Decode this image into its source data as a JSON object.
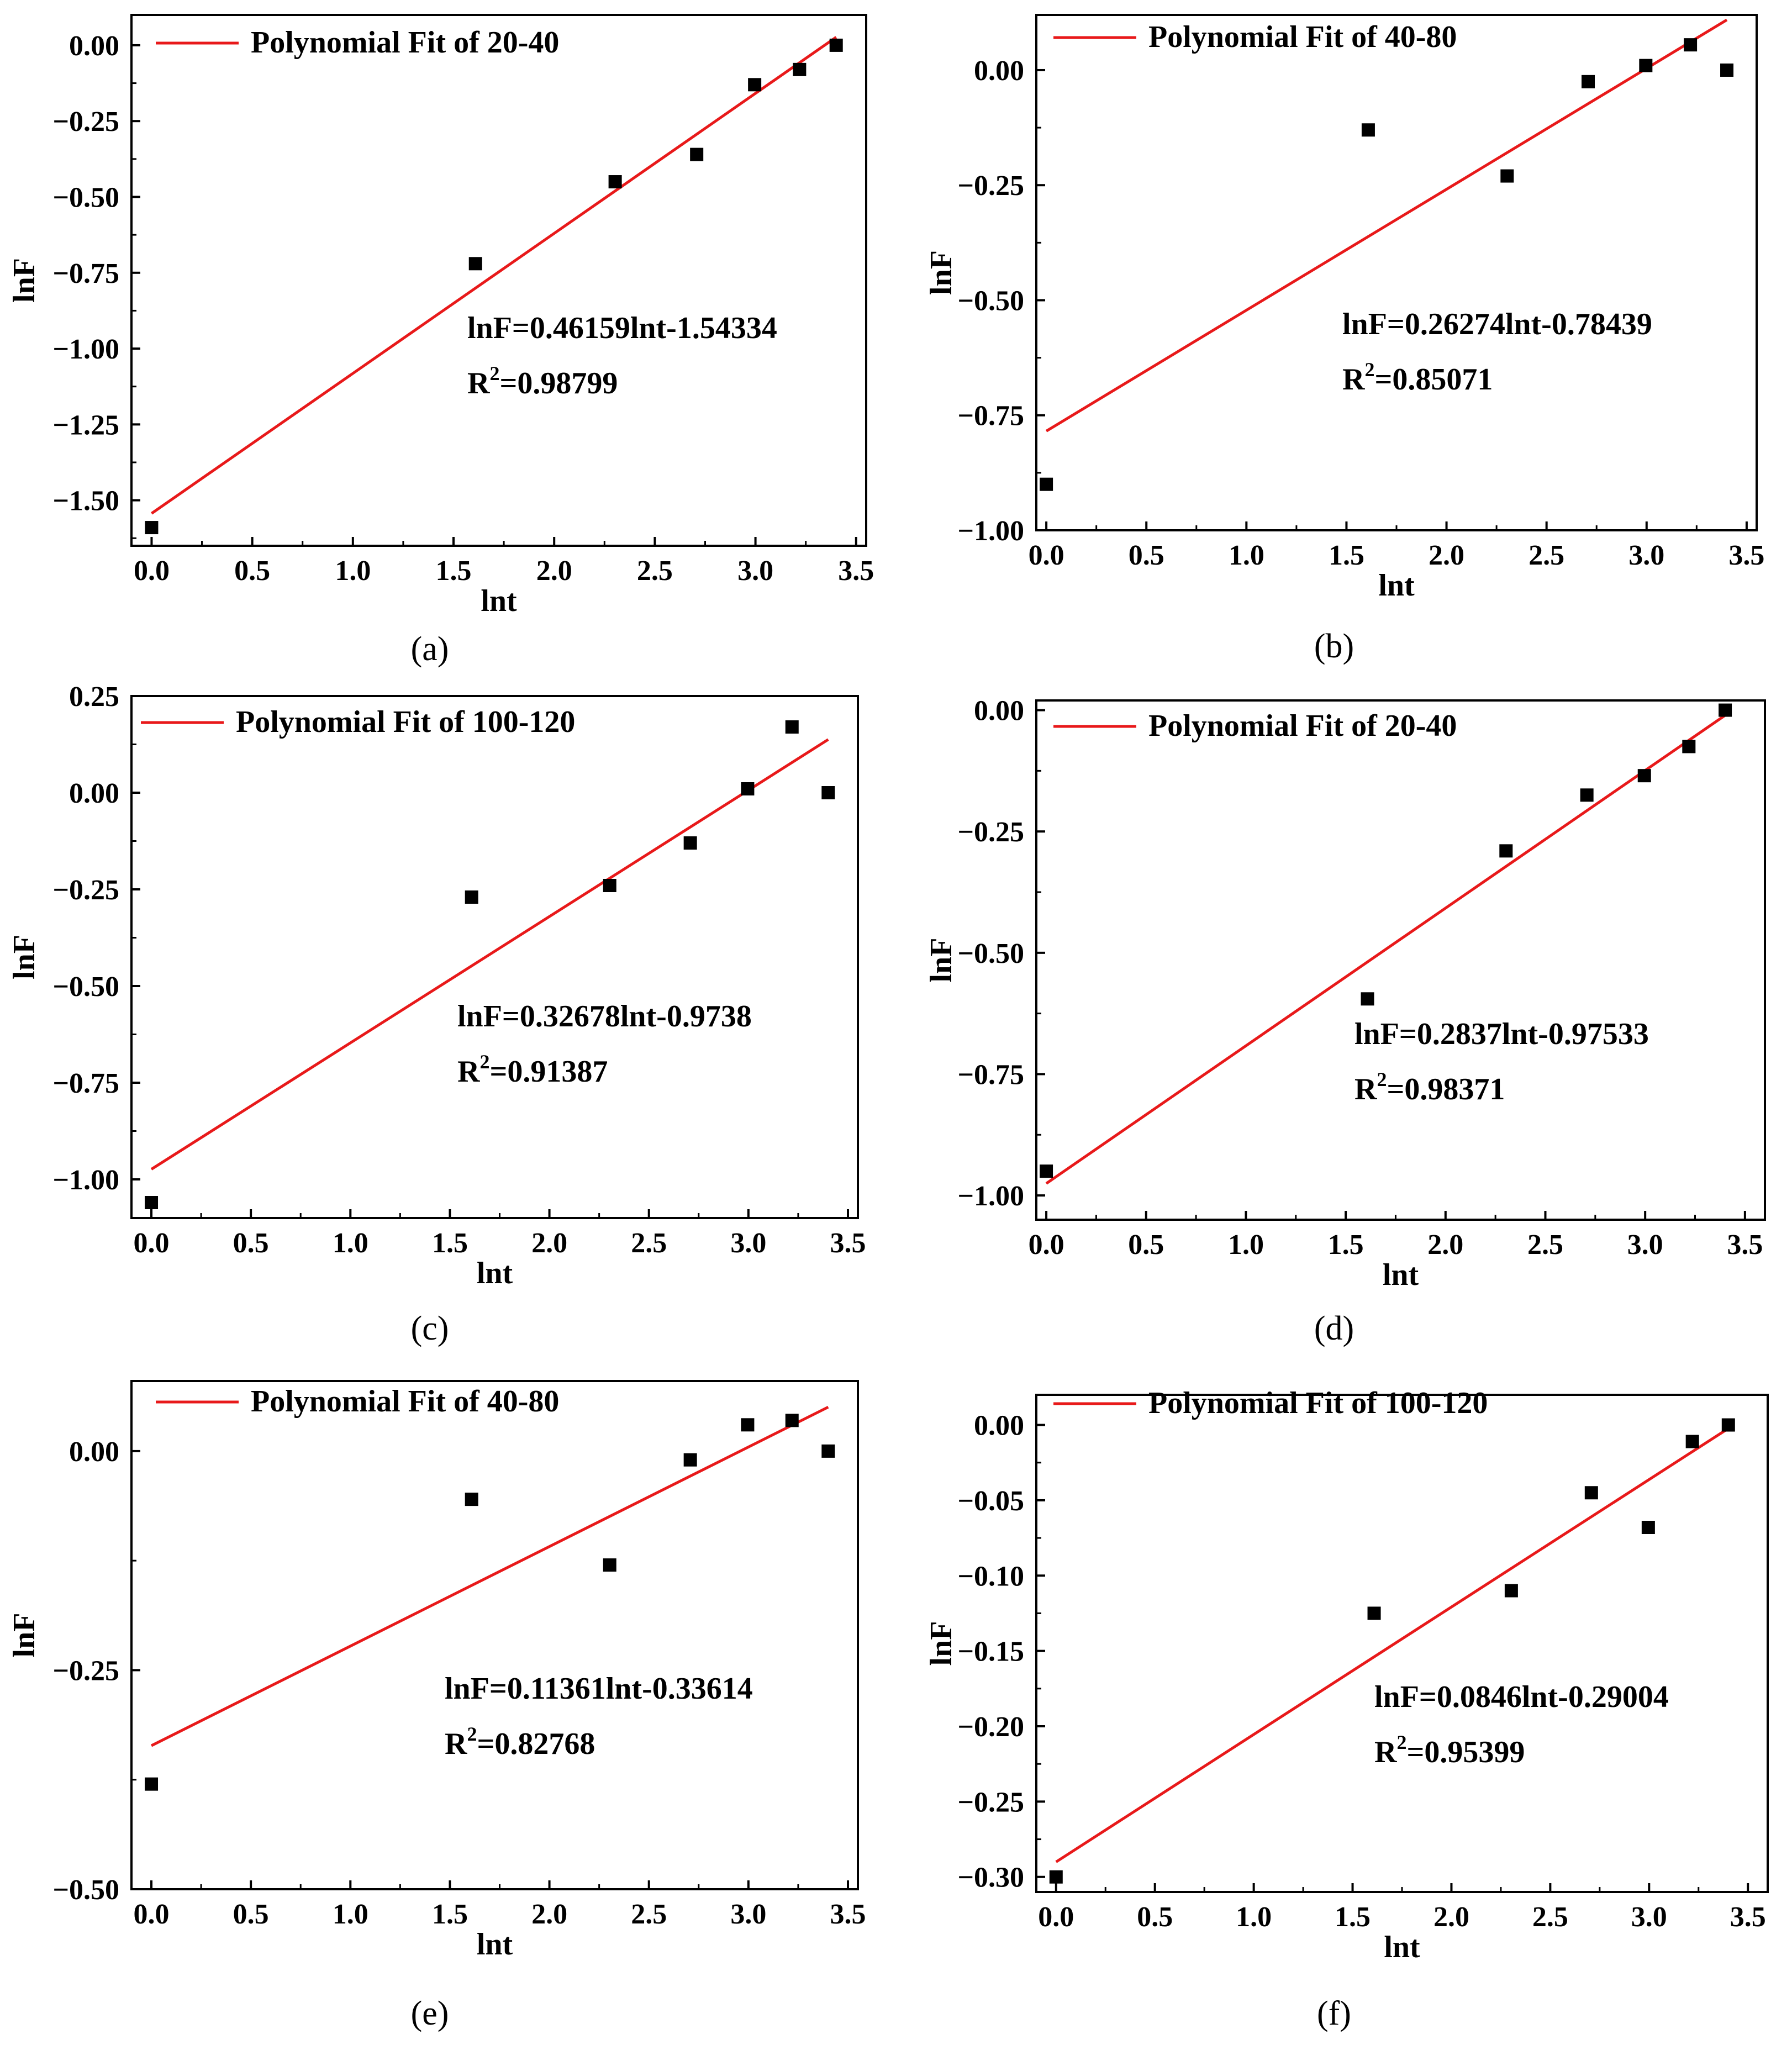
{
  "figure": {
    "panels_count": 6
  },
  "chart_data": [
    {
      "panel": "a",
      "caption": "(a)",
      "type": "scatter",
      "title": "",
      "xlabel": "lnt",
      "ylabel": "lnF",
      "xlim": [
        -0.1,
        3.55
      ],
      "ylim": [
        -1.65,
        0.1
      ],
      "xticks": [
        0.0,
        0.5,
        1.0,
        1.5,
        2.0,
        2.5,
        3.0,
        3.5
      ],
      "xtick_labels": [
        "0.0",
        "0.5",
        "1.0",
        "1.5",
        "2.0",
        "2.5",
        "3.0",
        "3.5"
      ],
      "yticks": [
        0.0,
        -0.25,
        -0.5,
        -0.75,
        -1.0,
        -1.25,
        -1.5
      ],
      "ytick_labels": [
        "0.00",
        "−0.25",
        "−0.50",
        "−0.75",
        "−1.00",
        "−1.25",
        "−1.50"
      ],
      "series": [
        {
          "name": "data",
          "x": [
            0.0,
            1.609,
            2.303,
            2.708,
            2.996,
            3.219,
            3.401
          ],
          "y": [
            -1.59,
            -0.72,
            -0.45,
            -0.36,
            -0.13,
            -0.08,
            0.0
          ]
        }
      ],
      "fit": {
        "slope": 0.46159,
        "intercept": -1.54334,
        "x_range": [
          0.0,
          3.401
        ],
        "color": "#e8191a"
      },
      "legend": "Polynomial Fit of 20-40",
      "equation": "lnF=0.46159lnt-1.54334",
      "r2_label": "R",
      "r2_sup": "2",
      "r2_value": "=0.98799"
    },
    {
      "panel": "b",
      "caption": "(b)",
      "type": "scatter",
      "title": "",
      "xlabel": "lnt",
      "ylabel": "lnF",
      "xlim": [
        -0.05,
        3.55
      ],
      "ylim": [
        -1.0,
        0.12
      ],
      "xticks": [
        0.0,
        0.5,
        1.0,
        1.5,
        2.0,
        2.5,
        3.0,
        3.5
      ],
      "xtick_labels": [
        "0.0",
        "0.5",
        "1.0",
        "1.5",
        "2.0",
        "2.5",
        "3.0",
        "3.5"
      ],
      "yticks": [
        0.0,
        -0.25,
        -0.5,
        -0.75,
        -1.0
      ],
      "ytick_labels": [
        "0.00",
        "−0.25",
        "−0.50",
        "−0.75",
        "−1.00"
      ],
      "series": [
        {
          "name": "data",
          "x": [
            0.0,
            1.609,
            2.303,
            2.708,
            2.996,
            3.219,
            3.401
          ],
          "y": [
            -0.9,
            -0.13,
            -0.23,
            -0.025,
            0.01,
            0.055,
            0.0
          ]
        }
      ],
      "fit": {
        "slope": 0.26274,
        "intercept": -0.78439,
        "x_range": [
          0.0,
          3.401
        ],
        "color": "#e8191a"
      },
      "legend": "Polynomial Fit of 40-80",
      "equation": "lnF=0.26274lnt-0.78439",
      "r2_label": "R",
      "r2_sup": "2",
      "r2_value": "=0.85071"
    },
    {
      "panel": "c",
      "caption": "(c)",
      "type": "scatter",
      "title": "",
      "xlabel": "lnt",
      "ylabel": "lnF",
      "xlim": [
        -0.1,
        3.55
      ],
      "ylim": [
        -1.1,
        0.25
      ],
      "xticks": [
        0.0,
        0.5,
        1.0,
        1.5,
        2.0,
        2.5,
        3.0,
        3.5
      ],
      "xtick_labels": [
        "0.0",
        "0.5",
        "1.0",
        "1.5",
        "2.0",
        "2.5",
        "3.0",
        "3.5"
      ],
      "yticks": [
        0.25,
        0.0,
        -0.25,
        -0.5,
        -0.75,
        -1.0
      ],
      "ytick_labels": [
        "0.25",
        "0.00",
        "−0.25",
        "−0.50",
        "−0.75",
        "−1.00"
      ],
      "series": [
        {
          "name": "data",
          "x": [
            0.0,
            1.609,
            2.303,
            2.708,
            2.996,
            3.219,
            3.401
          ],
          "y": [
            -1.06,
            -0.27,
            -0.24,
            -0.13,
            0.01,
            0.17,
            0.0
          ]
        }
      ],
      "fit": {
        "slope": 0.32678,
        "intercept": -0.9738,
        "x_range": [
          0.0,
          3.401
        ],
        "color": "#e8191a"
      },
      "legend": "Polynomial Fit of 100-120",
      "equation": "lnF=0.32678lnt-0.9738",
      "r2_label": "R",
      "r2_sup": "2",
      "r2_value": "=0.91387"
    },
    {
      "panel": "d",
      "caption": "(d)",
      "type": "scatter",
      "title": "",
      "xlabel": "lnt",
      "ylabel": "lnF",
      "xlim": [
        -0.05,
        3.6
      ],
      "ylim": [
        -1.05,
        0.02
      ],
      "xticks": [
        0.0,
        0.5,
        1.0,
        1.5,
        2.0,
        2.5,
        3.0,
        3.5
      ],
      "xtick_labels": [
        "0.0",
        "0.5",
        "1.0",
        "1.5",
        "2.0",
        "2.5",
        "3.0",
        "3.5"
      ],
      "yticks": [
        0.0,
        -0.25,
        -0.5,
        -0.75,
        -1.0
      ],
      "ytick_labels": [
        "0.00",
        "−0.25",
        "−0.50",
        "−0.75",
        "−1.00"
      ],
      "series": [
        {
          "name": "data",
          "x": [
            0.0,
            1.609,
            2.303,
            2.708,
            2.996,
            3.219,
            3.401
          ],
          "y": [
            -0.95,
            -0.595,
            -0.29,
            -0.175,
            -0.135,
            -0.075,
            0.0
          ]
        }
      ],
      "fit": {
        "slope": 0.2837,
        "intercept": -0.97533,
        "x_range": [
          0.0,
          3.401
        ],
        "color": "#e8191a"
      },
      "legend": "Polynomial Fit of 20-40",
      "equation": "lnF=0.2837lnt-0.97533",
      "r2_label": "R",
      "r2_sup": "2",
      "r2_value": "=0.98371"
    },
    {
      "panel": "e",
      "caption": "(e)",
      "type": "scatter",
      "title": "",
      "xlabel": "lnt",
      "ylabel": "lnF",
      "xlim": [
        -0.1,
        3.55
      ],
      "ylim": [
        -0.5,
        0.08
      ],
      "xticks": [
        0.0,
        0.5,
        1.0,
        1.5,
        2.0,
        2.5,
        3.0,
        3.5
      ],
      "xtick_labels": [
        "0.0",
        "0.5",
        "1.0",
        "1.5",
        "2.0",
        "2.5",
        "3.0",
        "3.5"
      ],
      "yticks": [
        0.0,
        -0.25,
        -0.5
      ],
      "ytick_labels": [
        "0.00",
        "−0.25",
        "−0.50"
      ],
      "series": [
        {
          "name": "data",
          "x": [
            0.0,
            1.609,
            2.303,
            2.708,
            2.996,
            3.219,
            3.401
          ],
          "y": [
            -0.38,
            -0.055,
            -0.13,
            -0.01,
            0.03,
            0.035,
            0.0
          ]
        }
      ],
      "fit": {
        "slope": 0.11361,
        "intercept": -0.33614,
        "x_range": [
          0.0,
          3.401
        ],
        "color": "#e8191a"
      },
      "legend": "Polynomial Fit of 40-80",
      "equation": "lnF=0.11361lnt-0.33614",
      "r2_label": "R",
      "r2_sup": "2",
      "r2_value": "=0.82768"
    },
    {
      "panel": "f",
      "caption": "(f)",
      "type": "scatter",
      "title": "",
      "xlabel": "lnt",
      "ylabel": "lnF",
      "xlim": [
        -0.1,
        3.6
      ],
      "ylim": [
        -0.31,
        0.02
      ],
      "xticks": [
        0.0,
        0.5,
        1.0,
        1.5,
        2.0,
        2.5,
        3.0,
        3.5
      ],
      "xtick_labels": [
        "0.0",
        "0.5",
        "1.0",
        "1.5",
        "2.0",
        "2.5",
        "3.0",
        "3.5"
      ],
      "yticks": [
        0.0,
        -0.05,
        -0.1,
        -0.15,
        -0.2,
        -0.25,
        -0.3
      ],
      "ytick_labels": [
        "0.00",
        "−0.05",
        "−0.10",
        "−0.15",
        "−0.20",
        "−0.25",
        "−0.30"
      ],
      "series": [
        {
          "name": "data",
          "x": [
            0.0,
            1.609,
            2.303,
            2.708,
            2.996,
            3.219,
            3.401
          ],
          "y": [
            -0.3,
            -0.125,
            -0.11,
            -0.045,
            -0.068,
            -0.011,
            0.0
          ]
        }
      ],
      "fit": {
        "slope": 0.0846,
        "intercept": -0.29004,
        "x_range": [
          0.0,
          3.401
        ],
        "color": "#e8191a"
      },
      "legend": "Polynomial Fit of 100-120",
      "equation": "lnF=0.0846lnt-0.29004",
      "r2_label": "R",
      "r2_sup": "2",
      "r2_value": "=0.95399"
    }
  ]
}
